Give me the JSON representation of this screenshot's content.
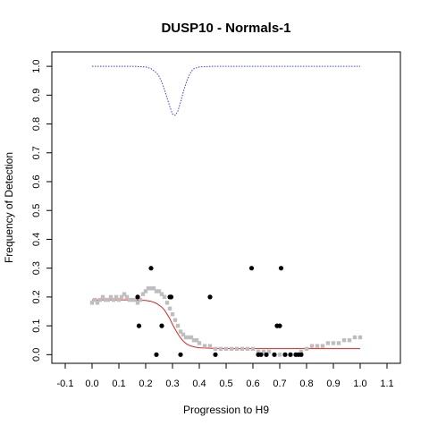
{
  "chart_data": {
    "type": "scatter",
    "title": "DUSP10 - Normals-1",
    "xlabel": "Progression to H9",
    "ylabel": "Frequency of Detection",
    "xlim": [
      -0.15,
      1.15
    ],
    "ylim": [
      -0.03,
      1.05
    ],
    "x_ticks": [
      -0.1,
      0.0,
      0.1,
      0.2,
      0.3,
      0.4,
      0.5,
      0.6,
      0.7,
      0.8,
      0.9,
      1.0,
      1.1
    ],
    "x_tick_labels": [
      "-0.1",
      "0.0",
      "0.1",
      "0.2",
      "0.3",
      "0.4",
      "0.5",
      "0.6",
      "0.7",
      "0.8",
      "0.9",
      "1.0",
      "1.1"
    ],
    "y_ticks": [
      0.0,
      0.1,
      0.2,
      0.3,
      0.4,
      0.5,
      0.6,
      0.7,
      0.8,
      0.9,
      1.0
    ],
    "y_tick_labels": [
      "0.0",
      "0.1",
      "0.2",
      "0.3",
      "0.4",
      "0.5",
      "0.6",
      "0.7",
      "0.8",
      "0.9",
      "1.0"
    ],
    "grid": false,
    "colors": {
      "observed": "#000000",
      "smoothed": "#bebebe",
      "fit": "#dd2222",
      "confidence": "#3a3aff"
    },
    "series": [
      {
        "kind": "points",
        "color_key": "observed",
        "x": [
          0.17,
          0.175,
          0.22,
          0.24,
          0.26,
          0.29,
          0.295,
          0.33,
          0.44,
          0.46,
          0.595,
          0.62,
          0.63,
          0.65,
          0.68,
          0.69,
          0.7,
          0.705,
          0.72,
          0.74,
          0.76,
          0.77,
          0.78
        ],
        "y": [
          0.2,
          0.1,
          0.3,
          0.0,
          0.1,
          0.2,
          0.2,
          0.0,
          0.2,
          0.0,
          0.3,
          0.0,
          0.0,
          0.0,
          0.0,
          0.1,
          0.1,
          0.3,
          0.0,
          0.0,
          0.0,
          0.0,
          0.0
        ]
      },
      {
        "kind": "smoothed",
        "color_key": "smoothed",
        "x": [
          0.0,
          0.01,
          0.02,
          0.03,
          0.04,
          0.05,
          0.06,
          0.07,
          0.08,
          0.09,
          0.1,
          0.11,
          0.12,
          0.13,
          0.14,
          0.15,
          0.16,
          0.17,
          0.18,
          0.19,
          0.2,
          0.21,
          0.22,
          0.23,
          0.24,
          0.25,
          0.26,
          0.27,
          0.28,
          0.29,
          0.3,
          0.31,
          0.32,
          0.33,
          0.34,
          0.35,
          0.36,
          0.37,
          0.38,
          0.39,
          0.4,
          0.42,
          0.44,
          0.46,
          0.48,
          0.5,
          0.52,
          0.54,
          0.56,
          0.58,
          0.6,
          0.62,
          0.64,
          0.66,
          0.68,
          0.7,
          0.72,
          0.74,
          0.76,
          0.78,
          0.8,
          0.82,
          0.84,
          0.86,
          0.88,
          0.9,
          0.92,
          0.94,
          0.96,
          0.98,
          1.0
        ],
        "y": [
          0.18,
          0.19,
          0.18,
          0.19,
          0.2,
          0.19,
          0.19,
          0.2,
          0.19,
          0.2,
          0.19,
          0.2,
          0.21,
          0.2,
          0.19,
          0.19,
          0.19,
          0.18,
          0.19,
          0.21,
          0.22,
          0.23,
          0.23,
          0.23,
          0.22,
          0.22,
          0.21,
          0.2,
          0.18,
          0.16,
          0.14,
          0.12,
          0.1,
          0.08,
          0.07,
          0.06,
          0.06,
          0.06,
          0.05,
          0.05,
          0.04,
          0.03,
          0.03,
          0.02,
          0.02,
          0.02,
          0.02,
          0.02,
          0.02,
          0.02,
          0.02,
          0.01,
          0.01,
          0.01,
          0.0,
          0.0,
          0.0,
          0.0,
          0.0,
          0.01,
          0.02,
          0.03,
          0.03,
          0.03,
          0.04,
          0.04,
          0.04,
          0.05,
          0.05,
          0.06,
          0.06
        ]
      },
      {
        "kind": "fit",
        "color_key": "fit",
        "x": [
          0.0,
          0.05,
          0.1,
          0.15,
          0.2,
          0.22,
          0.24,
          0.26,
          0.27,
          0.28,
          0.29,
          0.3,
          0.31,
          0.32,
          0.33,
          0.34,
          0.35,
          0.36,
          0.38,
          0.4,
          0.45,
          0.5,
          0.6,
          0.7,
          0.8,
          0.9,
          1.0
        ],
        "y": [
          0.19,
          0.19,
          0.19,
          0.19,
          0.188,
          0.185,
          0.178,
          0.165,
          0.155,
          0.14,
          0.125,
          0.105,
          0.088,
          0.072,
          0.058,
          0.047,
          0.039,
          0.033,
          0.027,
          0.024,
          0.022,
          0.021,
          0.021,
          0.021,
          0.021,
          0.021,
          0.021
        ]
      },
      {
        "kind": "confidence",
        "color_key": "confidence",
        "x": [
          0.0,
          0.1,
          0.15,
          0.2,
          0.22,
          0.24,
          0.25,
          0.26,
          0.27,
          0.28,
          0.29,
          0.3,
          0.31,
          0.32,
          0.33,
          0.34,
          0.35,
          0.36,
          0.37,
          0.38,
          0.4,
          0.45,
          0.5,
          0.6,
          0.8,
          1.0
        ],
        "y": [
          1.0,
          1.0,
          1.0,
          0.998,
          0.992,
          0.978,
          0.965,
          0.945,
          0.92,
          0.89,
          0.86,
          0.835,
          0.83,
          0.845,
          0.875,
          0.91,
          0.94,
          0.965,
          0.982,
          0.992,
          0.998,
          1.0,
          1.0,
          1.0,
          1.0,
          1.0
        ]
      }
    ]
  }
}
